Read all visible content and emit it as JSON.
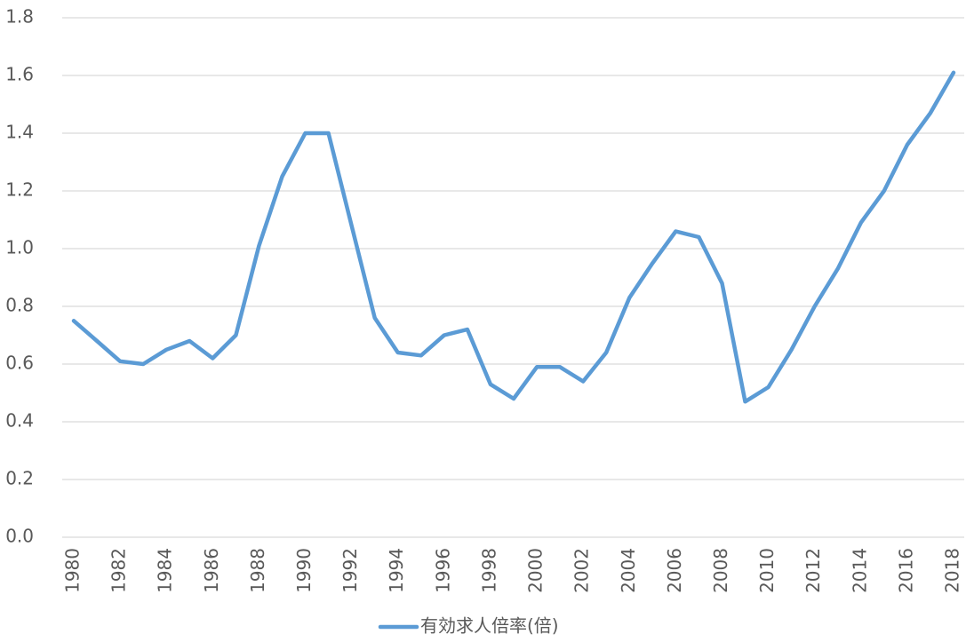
{
  "chart_data": {
    "type": "line",
    "title": "",
    "xlabel": "",
    "ylabel": "",
    "ylim": [
      0,
      1.8
    ],
    "yticks": [
      "0.0",
      "0.2",
      "0.4",
      "0.6",
      "0.8",
      "1.0",
      "1.2",
      "1.4",
      "1.6",
      "1.8"
    ],
    "x": [
      1980,
      1981,
      1982,
      1983,
      1984,
      1985,
      1986,
      1987,
      1988,
      1989,
      1990,
      1991,
      1992,
      1993,
      1994,
      1995,
      1996,
      1997,
      1998,
      1999,
      2000,
      2001,
      2002,
      2003,
      2004,
      2005,
      2006,
      2007,
      2008,
      2009,
      2010,
      2011,
      2012,
      2013,
      2014,
      2015,
      2016,
      2017,
      2018
    ],
    "xtick_labels": [
      "1980",
      "1982",
      "1984",
      "1986",
      "1988",
      "1990",
      "1992",
      "1994",
      "1996",
      "1998",
      "2000",
      "2002",
      "2004",
      "2006",
      "2008",
      "2010",
      "2012",
      "2014",
      "2016",
      "2018"
    ],
    "series": [
      {
        "name": "有効求人倍率(倍)",
        "color": "#5b9bd5",
        "values": [
          0.75,
          0.68,
          0.61,
          0.6,
          0.65,
          0.68,
          0.62,
          0.7,
          1.01,
          1.25,
          1.4,
          1.4,
          1.08,
          0.76,
          0.64,
          0.63,
          0.7,
          0.72,
          0.53,
          0.48,
          0.59,
          0.59,
          0.54,
          0.64,
          0.83,
          0.95,
          1.06,
          1.04,
          0.88,
          0.47,
          0.52,
          0.65,
          0.8,
          0.93,
          1.09,
          1.2,
          1.36,
          1.47,
          1.61
        ]
      }
    ],
    "grid": true,
    "legend_position": "bottom"
  }
}
